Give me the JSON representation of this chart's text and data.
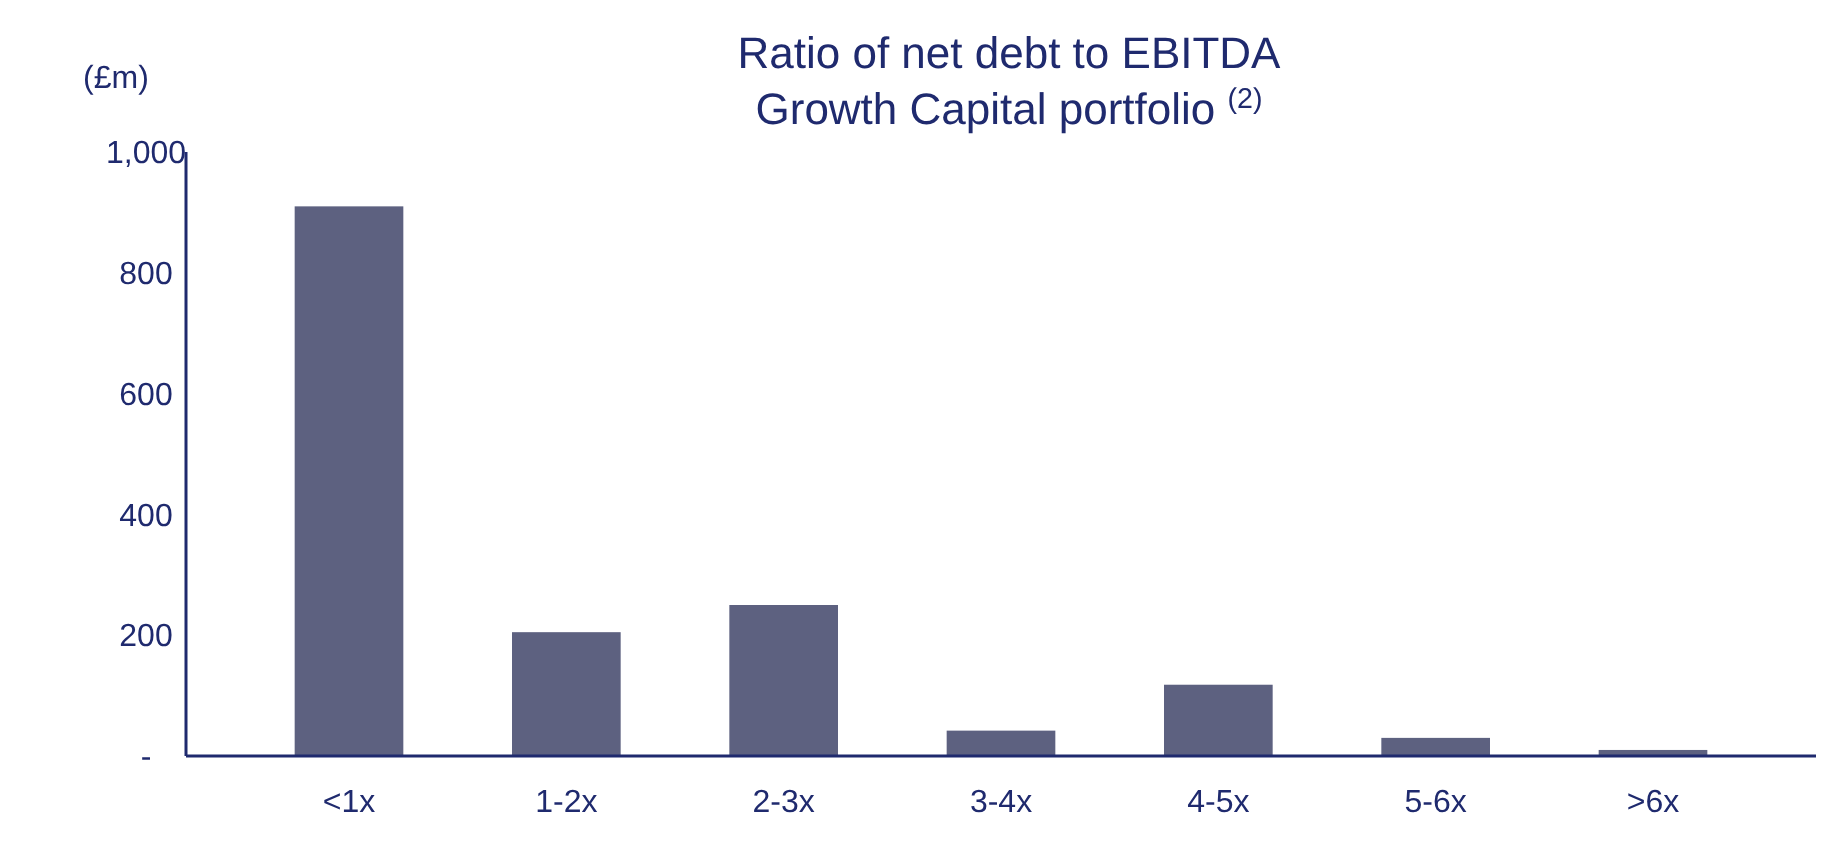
{
  "chart_data": {
    "type": "bar",
    "title": "Ratio of net debt to EBITDA",
    "subtitle": "Growth Capital portfolio $^{(2)}$",
    "ylabel": "(£m)",
    "categories": [
      "<1x",
      "1-2x",
      "2-3x",
      "3-4x",
      "4-5x",
      "5-6x",
      ">6x"
    ],
    "values": [
      910,
      205,
      250,
      42,
      118,
      30,
      10
    ],
    "color": "#5d6180",
    "ylim": [
      0,
      1000
    ],
    "yticks": [
      {
        "value": 0,
        "label": "-"
      },
      {
        "value": 200,
        "label": "200"
      },
      {
        "value": 400,
        "label": "400"
      },
      {
        "value": 600,
        "label": "600"
      },
      {
        "value": 800,
        "label": "800"
      },
      {
        "value": 1000,
        "label": "1,000"
      }
    ],
    "grid": false
  }
}
